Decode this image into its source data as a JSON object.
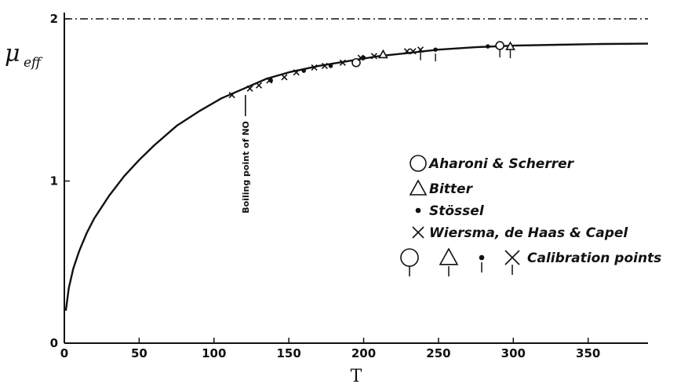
{
  "chart_data": {
    "type": "scatter",
    "xlabel": "T",
    "ylabel": "μ",
    "ylabel_sub": "eff",
    "xlim": [
      0,
      390
    ],
    "ylim": [
      0,
      2
    ],
    "xticks": [
      0,
      50,
      100,
      150,
      200,
      250,
      300,
      350
    ],
    "yticks": [
      0,
      1,
      2
    ],
    "xtick_labels": [
      "0",
      "50",
      "100",
      "150",
      "200",
      "250",
      "300",
      "350"
    ],
    "ytick_labels": [
      "0",
      "1",
      "2"
    ],
    "grid": false,
    "asymptote": {
      "y": 2,
      "style": "dash-dot"
    },
    "annotation": {
      "text": "Boiling point of NO",
      "x": 121
    },
    "curve": {
      "x": [
        1,
        3,
        6,
        10,
        15,
        20,
        30,
        40,
        50,
        60,
        75,
        90,
        105,
        120,
        135,
        150,
        170,
        190,
        210,
        230,
        250,
        275,
        300,
        330,
        360,
        390
      ],
      "y": [
        0.2,
        0.34,
        0.46,
        0.57,
        0.68,
        0.77,
        0.91,
        1.03,
        1.13,
        1.22,
        1.34,
        1.43,
        1.51,
        1.57,
        1.63,
        1.67,
        1.71,
        1.74,
        1.77,
        1.79,
        1.81,
        1.825,
        1.835,
        1.84,
        1.845,
        1.847
      ]
    },
    "series": [
      {
        "name": "Aharoni & Scherrer",
        "marker": "circle",
        "x": [
          195,
          291
        ],
        "y": [
          1.73,
          1.835
        ],
        "calibration": [
          false,
          true
        ]
      },
      {
        "name": "Bitter",
        "marker": "triangle",
        "x": [
          213,
          298
        ],
        "y": [
          1.78,
          1.83
        ],
        "calibration": [
          false,
          true
        ]
      },
      {
        "name": "Stössel",
        "marker": "dot",
        "x": [
          138,
          160,
          178,
          200,
          248,
          283
        ],
        "y": [
          1.62,
          1.68,
          1.71,
          1.76,
          1.81,
          1.83
        ],
        "calibration": [
          false,
          false,
          false,
          false,
          true,
          false
        ]
      },
      {
        "name": "Wiersma, de Haas & Capel",
        "marker": "cross",
        "x": [
          112,
          124,
          130,
          137,
          147,
          155,
          167,
          174,
          186,
          198,
          207,
          229,
          233,
          238
        ],
        "y": [
          1.53,
          1.57,
          1.59,
          1.62,
          1.64,
          1.67,
          1.7,
          1.71,
          1.73,
          1.76,
          1.77,
          1.8,
          1.8,
          1.81
        ],
        "calibration": [
          false,
          false,
          false,
          false,
          false,
          false,
          false,
          false,
          false,
          false,
          false,
          false,
          false,
          true
        ]
      }
    ],
    "legend": {
      "placement": "right-middle",
      "entries": [
        "Aharoni & Scherrer",
        "Bitter",
        "Stössel",
        "Wiersma, de Haas & Capel"
      ],
      "calibration_label": "Calibration points"
    }
  }
}
